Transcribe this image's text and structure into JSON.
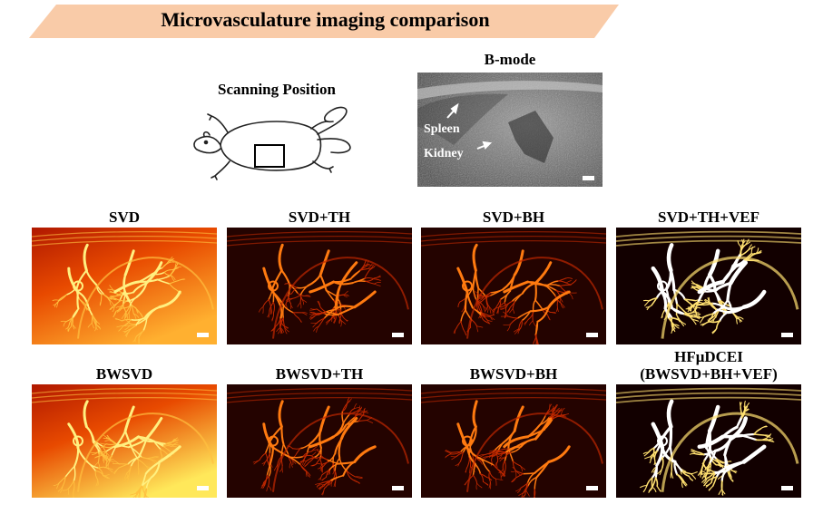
{
  "title": "Microvasculature imaging comparison",
  "scanning": {
    "label": "Scanning Position"
  },
  "bmode": {
    "label": "B-mode",
    "annotations": [
      "Spleen",
      "Kidney"
    ]
  },
  "rows": [
    {
      "panels": [
        {
          "label": "SVD",
          "style": "bright"
        },
        {
          "label": "SVD+TH",
          "style": "dark"
        },
        {
          "label": "SVD+BH",
          "style": "dark"
        },
        {
          "label": "SVD+TH+VEF",
          "style": "enhanced"
        }
      ]
    },
    {
      "panels": [
        {
          "label": "BWSVD",
          "style": "bright"
        },
        {
          "label": "BWSVD+TH",
          "style": "dark"
        },
        {
          "label": "BWSVD+BH",
          "style": "dark"
        },
        {
          "label": "HFμDCEI",
          "label2": "(BWSVD+BH+VEF)",
          "style": "enhanced"
        }
      ]
    }
  ],
  "colors": {
    "banner": "#f9cba8",
    "hot_low": "#3a0500",
    "hot_mid": "#e63a00",
    "hot_high": "#ffe85a"
  }
}
